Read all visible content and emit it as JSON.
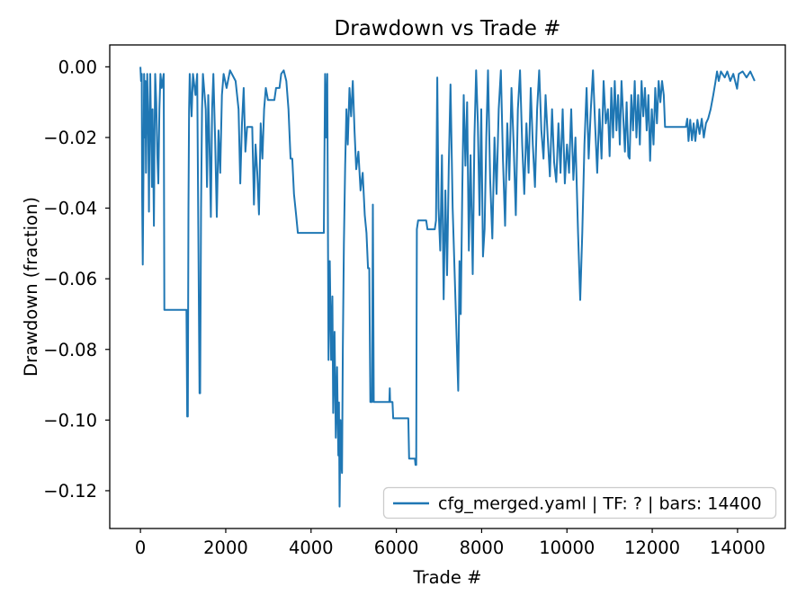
{
  "chart_data": {
    "type": "line",
    "title": "Drawdown vs Trade #",
    "xlabel": "Trade #",
    "ylabel": "Drawdown (fraction)",
    "grid": false,
    "legend_position": "lower right",
    "line_color": "#1f77b4",
    "axis_color": "#000000",
    "legend_border_color": "#cccccc",
    "xlim": [
      -720,
      15120
    ],
    "ylim": [
      -0.1307,
      0.0062
    ],
    "x_ticks": [
      0,
      2000,
      4000,
      6000,
      8000,
      10000,
      12000,
      14000
    ],
    "x_tick_labels": [
      "0",
      "2000",
      "4000",
      "6000",
      "8000",
      "10000",
      "12000",
      "14000"
    ],
    "y_ticks": [
      0.0,
      -0.02,
      -0.04,
      -0.06,
      -0.08,
      -0.1,
      -0.12
    ],
    "y_tick_labels": [
      "0.00",
      "−0.02",
      "−0.04",
      "−0.06",
      "−0.08",
      "−0.10",
      "−0.12"
    ],
    "series": [
      {
        "name": "cfg_merged.yaml | TF: ? | bars: 14400",
        "color": "#1f77b4",
        "points": [
          [
            0,
            0
          ],
          [
            15,
            -0.004
          ],
          [
            30,
            -0.002
          ],
          [
            40,
            -0.036
          ],
          [
            55,
            -0.056
          ],
          [
            70,
            -0.03
          ],
          [
            85,
            -0.002
          ],
          [
            100,
            -0.02
          ],
          [
            115,
            -0.004
          ],
          [
            130,
            -0.03
          ],
          [
            145,
            -0.015
          ],
          [
            160,
            -0.002
          ],
          [
            185,
            -0.02
          ],
          [
            200,
            -0.041
          ],
          [
            215,
            -0.015
          ],
          [
            230,
            -0.002
          ],
          [
            255,
            -0.022
          ],
          [
            270,
            -0.034
          ],
          [
            285,
            -0.012
          ],
          [
            300,
            -0.028
          ],
          [
            315,
            -0.045
          ],
          [
            330,
            -0.02
          ],
          [
            345,
            -0.002
          ],
          [
            370,
            -0.01
          ],
          [
            395,
            -0.025
          ],
          [
            420,
            -0.033
          ],
          [
            445,
            -0.012
          ],
          [
            470,
            -0.002
          ],
          [
            500,
            -0.006
          ],
          [
            545,
            -0.002
          ],
          [
            560,
            -0.0688
          ],
          [
            1080,
            -0.0688
          ],
          [
            1095,
            -0.099
          ],
          [
            1110,
            -0.099
          ],
          [
            1125,
            -0.04
          ],
          [
            1140,
            -0.012
          ],
          [
            1155,
            -0.002
          ],
          [
            1200,
            -0.014
          ],
          [
            1230,
            -0.002
          ],
          [
            1290,
            -0.008
          ],
          [
            1330,
            -0.002
          ],
          [
            1385,
            -0.0924
          ],
          [
            1400,
            -0.0924
          ],
          [
            1420,
            -0.04
          ],
          [
            1445,
            -0.012
          ],
          [
            1465,
            -0.002
          ],
          [
            1530,
            -0.012
          ],
          [
            1560,
            -0.034
          ],
          [
            1590,
            -0.008
          ],
          [
            1620,
            -0.022
          ],
          [
            1650,
            -0.0425
          ],
          [
            1680,
            -0.012
          ],
          [
            1710,
            -0.002
          ],
          [
            1750,
            -0.02
          ],
          [
            1790,
            -0.0425
          ],
          [
            1830,
            -0.018
          ],
          [
            1870,
            -0.03
          ],
          [
            1910,
            -0.008
          ],
          [
            1950,
            -0.002
          ],
          [
            2020,
            -0.006
          ],
          [
            2100,
            -0.001
          ],
          [
            2230,
            -0.004
          ],
          [
            2300,
            -0.012
          ],
          [
            2340,
            -0.033
          ],
          [
            2380,
            -0.016
          ],
          [
            2420,
            -0.006
          ],
          [
            2460,
            -0.024
          ],
          [
            2500,
            -0.017
          ],
          [
            2620,
            -0.017
          ],
          [
            2660,
            -0.039
          ],
          [
            2700,
            -0.022
          ],
          [
            2740,
            -0.03
          ],
          [
            2780,
            -0.0418
          ],
          [
            2820,
            -0.016
          ],
          [
            2860,
            -0.026
          ],
          [
            2900,
            -0.012
          ],
          [
            2940,
            -0.006
          ],
          [
            2990,
            -0.0094
          ],
          [
            3140,
            -0.0094
          ],
          [
            3180,
            -0.006
          ],
          [
            3260,
            -0.006
          ],
          [
            3300,
            -0.002
          ],
          [
            3360,
            -0.001
          ],
          [
            3420,
            -0.004
          ],
          [
            3470,
            -0.012
          ],
          [
            3520,
            -0.026
          ],
          [
            3560,
            -0.026
          ],
          [
            3600,
            -0.036
          ],
          [
            3650,
            -0.042
          ],
          [
            3690,
            -0.047
          ],
          [
            4300,
            -0.047
          ],
          [
            4330,
            -0.002
          ],
          [
            4355,
            -0.02
          ],
          [
            4380,
            -0.002
          ],
          [
            4410,
            -0.083
          ],
          [
            4440,
            -0.055
          ],
          [
            4470,
            -0.083
          ],
          [
            4500,
            -0.065
          ],
          [
            4520,
            -0.098
          ],
          [
            4550,
            -0.075
          ],
          [
            4580,
            -0.105
          ],
          [
            4610,
            -0.085
          ],
          [
            4640,
            -0.11
          ],
          [
            4655,
            -0.095
          ],
          [
            4670,
            -0.1245
          ],
          [
            4690,
            -0.1
          ],
          [
            4710,
            -0.1118
          ],
          [
            4725,
            -0.115
          ],
          [
            4745,
            -0.08
          ],
          [
            4770,
            -0.05
          ],
          [
            4800,
            -0.028
          ],
          [
            4830,
            -0.012
          ],
          [
            4860,
            -0.022
          ],
          [
            4900,
            -0.006
          ],
          [
            4940,
            -0.014
          ],
          [
            4980,
            -0.004
          ],
          [
            5020,
            -0.018
          ],
          [
            5060,
            -0.029
          ],
          [
            5110,
            -0.024
          ],
          [
            5160,
            -0.035
          ],
          [
            5210,
            -0.03
          ],
          [
            5260,
            -0.042
          ],
          [
            5300,
            -0.047
          ],
          [
            5335,
            -0.057
          ],
          [
            5365,
            -0.057
          ],
          [
            5390,
            -0.0949
          ],
          [
            5430,
            -0.0949
          ],
          [
            5450,
            -0.039
          ],
          [
            5470,
            -0.0949
          ],
          [
            5835,
            -0.0949
          ],
          [
            5845,
            -0.091
          ],
          [
            5855,
            -0.0949
          ],
          [
            5910,
            -0.0949
          ],
          [
            5925,
            -0.0995
          ],
          [
            6280,
            -0.0995
          ],
          [
            6300,
            -0.1109
          ],
          [
            6435,
            -0.1109
          ],
          [
            6450,
            -0.1127
          ],
          [
            6465,
            -0.1127
          ],
          [
            6480,
            -0.046
          ],
          [
            6510,
            -0.0435
          ],
          [
            6700,
            -0.0435
          ],
          [
            6730,
            -0.046
          ],
          [
            6900,
            -0.046
          ],
          [
            6930,
            -0.0435
          ],
          [
            6960,
            -0.003
          ],
          [
            6990,
            -0.04
          ],
          [
            7030,
            -0.052
          ],
          [
            7070,
            -0.025
          ],
          [
            7110,
            -0.0658
          ],
          [
            7150,
            -0.035
          ],
          [
            7190,
            -0.059
          ],
          [
            7230,
            -0.028
          ],
          [
            7270,
            -0.005
          ],
          [
            7320,
            -0.04
          ],
          [
            7370,
            -0.06
          ],
          [
            7450,
            -0.0917
          ],
          [
            7480,
            -0.055
          ],
          [
            7510,
            -0.07
          ],
          [
            7545,
            -0.035
          ],
          [
            7580,
            -0.008
          ],
          [
            7620,
            -0.028
          ],
          [
            7660,
            -0.01
          ],
          [
            7700,
            -0.052
          ],
          [
            7740,
            -0.025
          ],
          [
            7790,
            -0.0587
          ],
          [
            7830,
            -0.02
          ],
          [
            7870,
            -0.001
          ],
          [
            7910,
            -0.016
          ],
          [
            7950,
            -0.042
          ],
          [
            7990,
            -0.012
          ],
          [
            8030,
            -0.0537
          ],
          [
            8070,
            -0.046
          ],
          [
            8110,
            -0.02
          ],
          [
            8150,
            -0.001
          ],
          [
            8200,
            -0.032
          ],
          [
            8250,
            -0.0486
          ],
          [
            8300,
            -0.02
          ],
          [
            8350,
            -0.036
          ],
          [
            8400,
            -0.012
          ],
          [
            8450,
            -0.001
          ],
          [
            8500,
            -0.026
          ],
          [
            8550,
            -0.045
          ],
          [
            8600,
            -0.016
          ],
          [
            8650,
            -0.032
          ],
          [
            8700,
            -0.006
          ],
          [
            8750,
            -0.022
          ],
          [
            8800,
            -0.042
          ],
          [
            8850,
            -0.012
          ],
          [
            8900,
            -0.001
          ],
          [
            8950,
            -0.022
          ],
          [
            9000,
            -0.036
          ],
          [
            9050,
            -0.016
          ],
          [
            9100,
            -0.03
          ],
          [
            9150,
            -0.006
          ],
          [
            9200,
            -0.022
          ],
          [
            9250,
            -0.034
          ],
          [
            9300,
            -0.012
          ],
          [
            9350,
            -0.001
          ],
          [
            9400,
            -0.018
          ],
          [
            9450,
            -0.026
          ],
          [
            9500,
            -0.008
          ],
          [
            9550,
            -0.02
          ],
          [
            9600,
            -0.031
          ],
          [
            9650,
            -0.012
          ],
          [
            9700,
            -0.027
          ],
          [
            9750,
            -0.0326
          ],
          [
            9800,
            -0.016
          ],
          [
            9850,
            -0.03
          ],
          [
            9900,
            -0.012
          ],
          [
            9950,
            -0.033
          ],
          [
            10000,
            -0.022
          ],
          [
            10050,
            -0.03
          ],
          [
            10100,
            -0.012
          ],
          [
            10150,
            -0.032
          ],
          [
            10200,
            -0.02
          ],
          [
            10260,
            -0.047
          ],
          [
            10310,
            -0.066
          ],
          [
            10360,
            -0.047
          ],
          [
            10410,
            -0.022
          ],
          [
            10460,
            -0.006
          ],
          [
            10510,
            -0.026
          ],
          [
            10560,
            -0.012
          ],
          [
            10610,
            -0.001
          ],
          [
            10660,
            -0.016
          ],
          [
            10710,
            -0.03
          ],
          [
            10760,
            -0.012
          ],
          [
            10810,
            -0.026
          ],
          [
            10860,
            -0.004
          ],
          [
            10910,
            -0.016
          ],
          [
            10960,
            -0.012
          ],
          [
            11000,
            -0.0253
          ],
          [
            11040,
            -0.006
          ],
          [
            11080,
            -0.02
          ],
          [
            11120,
            -0.004
          ],
          [
            11160,
            -0.018
          ],
          [
            11200,
            -0.008
          ],
          [
            11240,
            -0.022
          ],
          [
            11280,
            -0.004
          ],
          [
            11320,
            -0.014
          ],
          [
            11360,
            -0.024
          ],
          [
            11400,
            -0.01
          ],
          [
            11440,
            -0.0253
          ],
          [
            11470,
            -0.026
          ],
          [
            11510,
            -0.008
          ],
          [
            11550,
            -0.018
          ],
          [
            11590,
            -0.004
          ],
          [
            11630,
            -0.02
          ],
          [
            11670,
            -0.008
          ],
          [
            11710,
            -0.022
          ],
          [
            11750,
            -0.004
          ],
          [
            11790,
            -0.014
          ],
          [
            11830,
            -0.006
          ],
          [
            11870,
            -0.018
          ],
          [
            11910,
            -0.008
          ],
          [
            11950,
            -0.0266
          ],
          [
            11990,
            -0.012
          ],
          [
            12030,
            -0.022
          ],
          [
            12070,
            -0.006
          ],
          [
            12110,
            -0.016
          ],
          [
            12150,
            -0.004
          ],
          [
            12190,
            -0.01
          ],
          [
            12230,
            -0.004
          ],
          [
            12270,
            -0.008
          ],
          [
            12300,
            -0.017
          ],
          [
            12790,
            -0.017
          ],
          [
            12820,
            -0.0147
          ],
          [
            12850,
            -0.021
          ],
          [
            12890,
            -0.015
          ],
          [
            12930,
            -0.0208
          ],
          [
            12970,
            -0.016
          ],
          [
            13010,
            -0.021
          ],
          [
            13060,
            -0.015
          ],
          [
            13110,
            -0.019
          ],
          [
            13160,
            -0.0147
          ],
          [
            13210,
            -0.02
          ],
          [
            13260,
            -0.016
          ],
          [
            13310,
            -0.0147
          ],
          [
            13370,
            -0.012
          ],
          [
            13430,
            -0.008
          ],
          [
            13480,
            -0.0045
          ],
          [
            13520,
            -0.0013
          ],
          [
            13560,
            -0.004
          ],
          [
            13610,
            -0.0013
          ],
          [
            13700,
            -0.003
          ],
          [
            13760,
            -0.0013
          ],
          [
            13830,
            -0.004
          ],
          [
            13900,
            -0.002
          ],
          [
            13990,
            -0.0062
          ],
          [
            14030,
            -0.002
          ],
          [
            14120,
            -0.0013
          ],
          [
            14210,
            -0.003
          ],
          [
            14300,
            -0.0013
          ],
          [
            14400,
            -0.004
          ]
        ]
      }
    ]
  }
}
